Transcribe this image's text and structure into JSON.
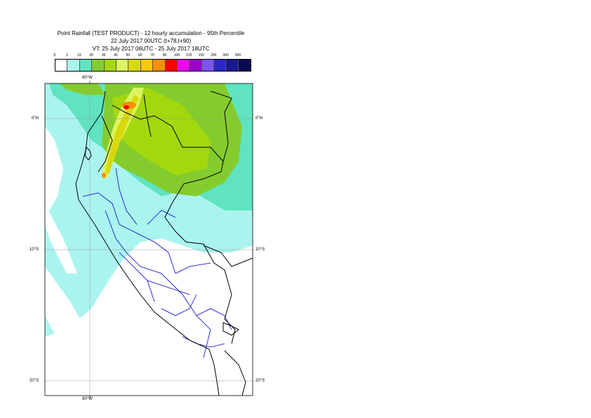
{
  "title": {
    "line1": "Point Rainfall (TEST PRODUCT) - 12 hourly accumulation - 95th Percentile",
    "line2": "22 July 2017 00UTC (t+78,t+90)",
    "line3": "VT: 25 July 2017 06UTC - 25 July 2017 18UTC"
  },
  "legend": {
    "thresholds": [
      "0",
      "1",
      "10",
      "20",
      "30",
      "40",
      "50",
      "60",
      "70",
      "80",
      "100",
      "125",
      "150",
      "200",
      "300",
      "500"
    ],
    "colors": [
      "#ffffff",
      "#aaf4f0",
      "#5fe3c0",
      "#84cc2e",
      "#a4d80e",
      "#dcf460",
      "#d8d80c",
      "#f8c800",
      "#fa8e04",
      "#ff0000",
      "#f400f4",
      "#9a00c8",
      "#7c54fa",
      "#2a26c8",
      "#1a1a8e",
      "#0a0a50"
    ]
  },
  "axes": {
    "top_lon": "80°W",
    "bottom_lon": "80°W",
    "lat_left": [
      "0°N",
      "10°S",
      "20°S"
    ],
    "lat_right": [
      "0°N",
      "10°S",
      "20°S"
    ]
  },
  "map_colors": {
    "ocean_light": "#aaf4f0",
    "band_medium": "#5fe3c0",
    "green": "#84cc2e",
    "yellow_green": "#a4d80e",
    "light_yellow": "#dcf460",
    "yellow": "#d8d80c",
    "orange": "#fa8e04",
    "red": "#ff0000",
    "country_border": "#000000",
    "region_border": "#0000c8"
  }
}
